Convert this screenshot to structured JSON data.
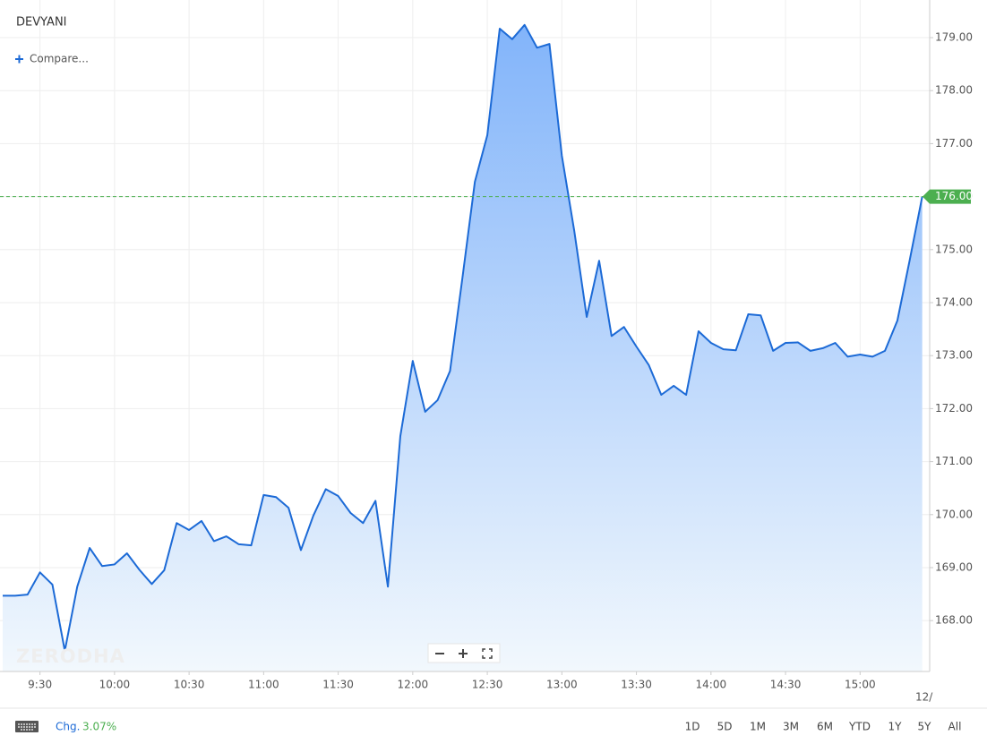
{
  "chart_data": {
    "type": "area",
    "title": "DEVYANI",
    "x": [
      "9:15",
      "9:20",
      "9:25",
      "9:30",
      "9:35",
      "9:40",
      "9:45",
      "9:50",
      "9:55",
      "10:00",
      "10:05",
      "10:10",
      "10:15",
      "10:20",
      "10:25",
      "10:30",
      "10:35",
      "10:40",
      "10:45",
      "10:50",
      "10:55",
      "11:00",
      "11:05",
      "11:10",
      "11:15",
      "11:20",
      "11:25",
      "11:30",
      "11:35",
      "11:40",
      "11:45",
      "11:50",
      "11:55",
      "12:00",
      "12:05",
      "12:10",
      "12:15",
      "12:20",
      "12:25",
      "12:30",
      "12:35",
      "12:40",
      "12:45",
      "12:50",
      "12:55",
      "13:00",
      "13:05",
      "13:10",
      "13:15",
      "13:20",
      "13:25",
      "13:30",
      "13:35",
      "13:40",
      "13:45",
      "13:50",
      "13:55",
      "14:00",
      "14:05",
      "14:10",
      "14:15",
      "14:20",
      "14:25",
      "14:30",
      "14:35",
      "14:40",
      "14:45",
      "14:50",
      "14:55",
      "15:00",
      "15:05",
      "15:10",
      "15:15",
      "15:20",
      "15:25"
    ],
    "values": [
      168.47,
      168.47,
      168.49,
      168.91,
      168.68,
      167.43,
      168.64,
      169.37,
      169.03,
      169.06,
      169.27,
      168.96,
      168.69,
      168.95,
      169.84,
      169.71,
      169.88,
      169.5,
      169.59,
      169.44,
      169.42,
      170.37,
      170.33,
      170.13,
      169.33,
      169.98,
      170.48,
      170.35,
      170.03,
      169.84,
      170.26,
      168.64,
      171.48,
      172.9,
      171.94,
      172.16,
      172.71,
      174.47,
      176.28,
      177.16,
      179.17,
      178.97,
      179.24,
      178.81,
      178.88,
      176.77,
      175.35,
      173.73,
      174.79,
      173.37,
      173.54,
      173.17,
      172.82,
      172.26,
      172.43,
      172.26,
      173.46,
      173.24,
      173.12,
      173.1,
      173.78,
      173.76,
      173.09,
      173.24,
      173.25,
      173.09,
      173.14,
      173.24,
      172.98,
      173.02,
      172.98,
      173.09,
      173.66,
      174.81,
      176
    ],
    "color": "#1c6ad6",
    "xlim": [
      "9:15",
      "15:28"
    ],
    "xticks": [
      "9:30",
      "10:00",
      "10:30",
      "11:00",
      "11:30",
      "12:00",
      "12:30",
      "13:00",
      "13:30",
      "14:00",
      "14:30",
      "15:00"
    ],
    "ylim": [
      167.04,
      179.71
    ],
    "yticks": [
      {
        "value": 168,
        "label": "168.00"
      },
      {
        "value": 169,
        "label": "169.00"
      },
      {
        "value": 170,
        "label": "170.00"
      },
      {
        "value": 171,
        "label": "171.00"
      },
      {
        "value": 172,
        "label": "172.00"
      },
      {
        "value": 173,
        "label": "173.00"
      },
      {
        "value": 174,
        "label": "174.00"
      },
      {
        "value": 175,
        "label": "175.00"
      },
      {
        "value": 176,
        "label": "176.00"
      },
      {
        "value": 177,
        "label": "177.00"
      },
      {
        "value": 178,
        "label": "178.00"
      },
      {
        "value": 179,
        "label": "179.00"
      }
    ],
    "grid": true,
    "last_price": {
      "value": 176,
      "label": "176.00"
    },
    "last_price_color": "#4caf50",
    "date_label": "12/"
  },
  "compare": "Compare...",
  "watermark": "ZERODHA",
  "toolbar": {
    "change_label": "Chg.",
    "change": "3.07%",
    "ranges": [
      "1D",
      "5D",
      "1M",
      "3M",
      "6M",
      "YTD",
      "1Y",
      "5Y",
      "All"
    ]
  }
}
